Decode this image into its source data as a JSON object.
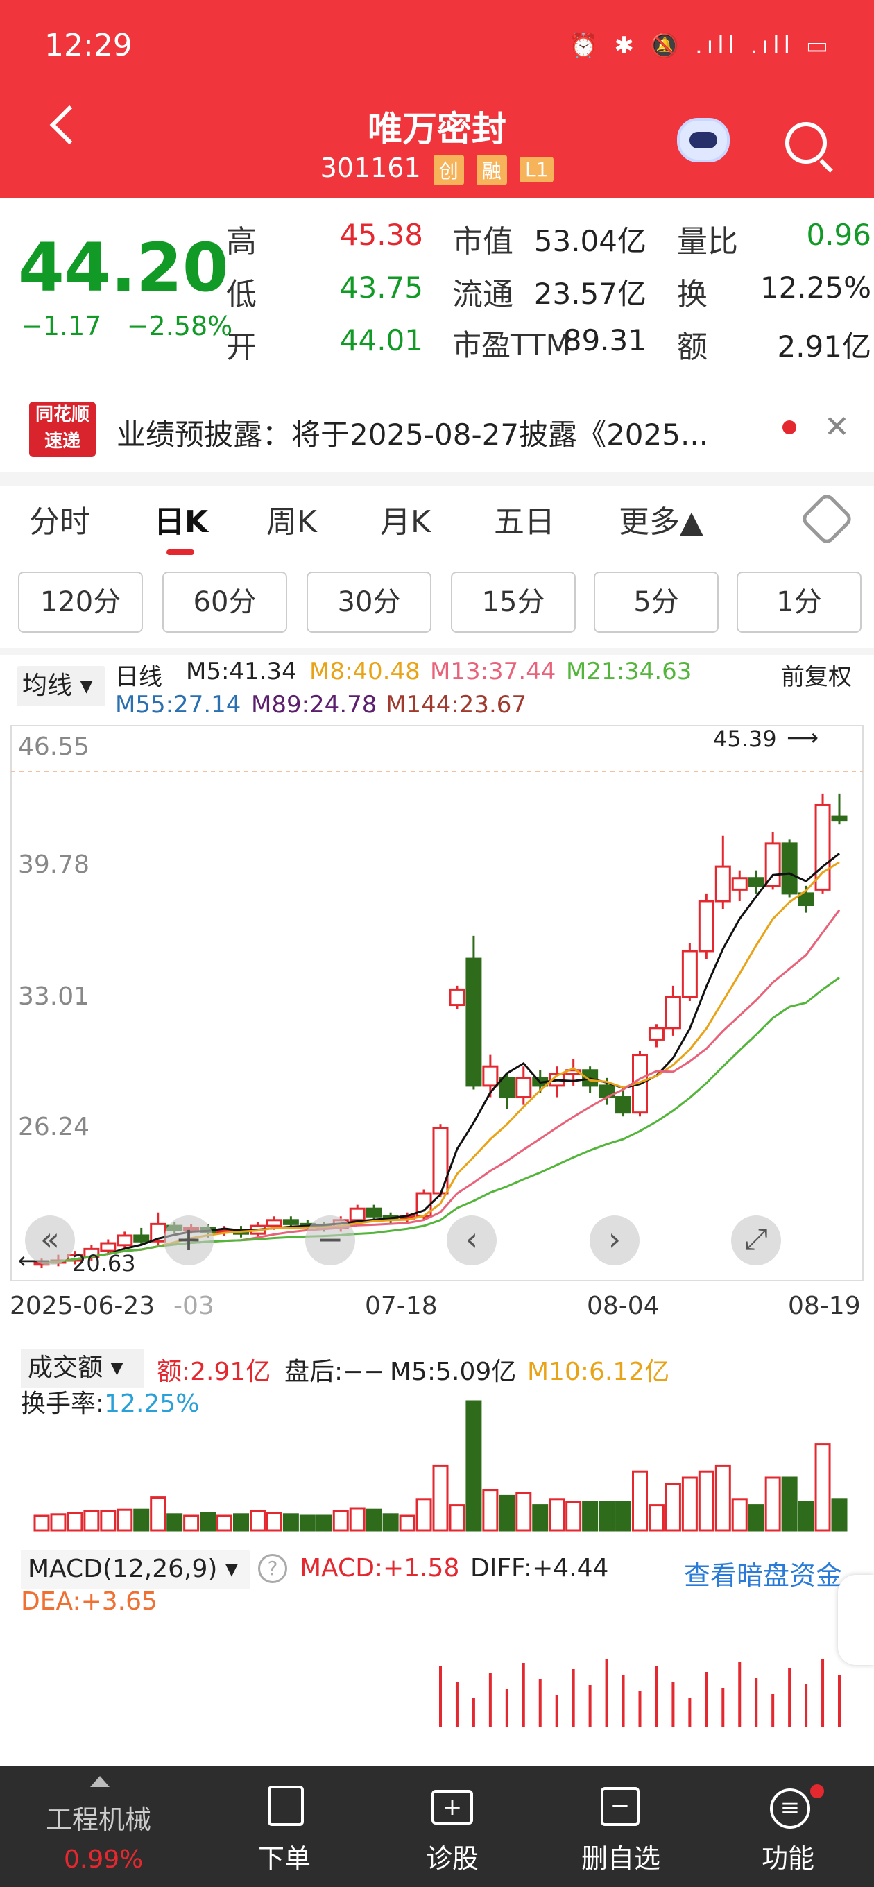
{
  "status": {
    "time": "12:29",
    "icons": "⏰ ✱ 🔕 .ıll .ıll ▭"
  },
  "header": {
    "title": "唯万密封",
    "code": "301161",
    "tags": [
      "创",
      "融",
      "L1"
    ]
  },
  "quote": {
    "price": "44.20",
    "change": "−1.17",
    "change_pct": "−2.58%",
    "cells": [
      {
        "label": "高",
        "value": "45.38"
      },
      {
        "label": "低",
        "value": "43.75"
      },
      {
        "label": "开",
        "value": "44.01"
      },
      {
        "label": "市值",
        "value": "53.04亿"
      },
      {
        "label": "流通",
        "value": "23.57亿"
      },
      {
        "label": "市盈TTM",
        "value": "89.31"
      },
      {
        "label": "量比",
        "value": "0.96"
      },
      {
        "label": "换",
        "value": "12.25%"
      },
      {
        "label": "额",
        "value": "2.91亿"
      }
    ]
  },
  "notice": {
    "logo_top": "同花顺",
    "logo_bottom": "速递",
    "text": "业绩预披露：将于2025-08-27披露《2025...",
    "close": "✕"
  },
  "tabs": [
    "分时",
    "日K",
    "周K",
    "月K",
    "五日",
    "更多▲"
  ],
  "subtabs": [
    "120分",
    "60分",
    "30分",
    "15分",
    "5分",
    "1分"
  ],
  "ma": {
    "select": "均线 ▾",
    "label": "日线",
    "adjust": "前复权",
    "row1": [
      {
        "t": "M5:41.34",
        "c": "#111111"
      },
      {
        "t": "M8:40.48",
        "c": "#e8a317"
      },
      {
        "t": "M13:37.44",
        "c": "#e8637a"
      },
      {
        "t": "M21:34.63",
        "c": "#53b53a"
      }
    ],
    "row2": [
      {
        "t": "M55:27.14",
        "c": "#2a6fb0"
      },
      {
        "t": "M89:24.78",
        "c": "#5b1f6e"
      },
      {
        "t": "M144:23.67",
        "c": "#a13a2e"
      }
    ]
  },
  "chart": {
    "y_ticks": [
      "46.55",
      "39.78",
      "33.01",
      "26.24"
    ],
    "high_label": "45.39",
    "low_label": "20.63",
    "dates": [
      "2025-06-23",
      "-03",
      "07-18",
      "08-04",
      "08-19"
    ],
    "controls": [
      "«",
      "+",
      "−",
      "‹",
      "›",
      "⤢"
    ]
  },
  "volume": {
    "select": "成交额 ▾",
    "amount": "额:2.91亿",
    "after": "盘后:−−",
    "m5": "M5:5.09亿",
    "m10": "M10:6.12亿",
    "turnover_label": "换手率:",
    "turnover": "12.25%"
  },
  "macd": {
    "select": "MACD(12,26,9) ▾",
    "help": "?",
    "macd": "MACD:+1.58",
    "diff": "DIFF:+4.44",
    "dea": "DEA:+3.65",
    "link": "查看暗盘资金"
  },
  "bottom": {
    "sector": "工程机械",
    "sector_pct": "0.99%",
    "items": [
      "下单",
      "诊股",
      "删自选",
      "功能"
    ]
  },
  "chart_data": {
    "type": "candlestick",
    "ylim": [
      20.63,
      46.55
    ],
    "candles": [
      [
        20.9,
        21.0,
        20.7,
        21.2
      ],
      [
        21.0,
        21.1,
        20.8,
        21.4
      ],
      [
        21.1,
        21.4,
        20.9,
        21.6
      ],
      [
        21.3,
        21.7,
        21.1,
        21.9
      ],
      [
        21.6,
        22.0,
        21.4,
        22.2
      ],
      [
        21.9,
        22.4,
        21.7,
        22.6
      ],
      [
        22.4,
        22.1,
        21.9,
        22.8
      ],
      [
        22.1,
        23.0,
        21.9,
        23.6
      ],
      [
        22.9,
        22.7,
        22.5,
        23.1
      ],
      [
        22.7,
        22.8,
        22.5,
        23.0
      ],
      [
        22.8,
        22.6,
        22.3,
        23.0
      ],
      [
        22.6,
        22.7,
        22.4,
        22.9
      ],
      [
        22.7,
        22.5,
        22.3,
        22.9
      ],
      [
        22.5,
        22.9,
        22.3,
        23.1
      ],
      [
        22.9,
        23.2,
        22.7,
        23.4
      ],
      [
        23.2,
        23.0,
        22.8,
        23.4
      ],
      [
        23.0,
        22.9,
        22.7,
        23.2
      ],
      [
        22.9,
        22.8,
        22.6,
        23.1
      ],
      [
        22.8,
        23.2,
        22.6,
        23.4
      ],
      [
        23.2,
        23.8,
        23.0,
        24.0
      ],
      [
        23.8,
        23.4,
        23.1,
        24.0
      ],
      [
        23.4,
        23.3,
        23.0,
        23.6
      ],
      [
        23.3,
        23.4,
        23.1,
        23.6
      ],
      [
        23.4,
        24.6,
        23.2,
        24.8
      ],
      [
        24.6,
        28.0,
        24.4,
        28.2
      ],
      [
        34.4,
        35.2,
        34.2,
        35.4
      ],
      [
        36.8,
        30.2,
        30.0,
        38.0
      ],
      [
        30.2,
        31.2,
        29.6,
        31.8
      ],
      [
        30.6,
        29.6,
        29.0,
        30.8
      ],
      [
        29.6,
        30.6,
        29.2,
        31.2
      ],
      [
        30.6,
        30.2,
        29.8,
        31.0
      ],
      [
        30.2,
        30.8,
        29.6,
        31.2
      ],
      [
        30.8,
        31.0,
        30.2,
        31.6
      ],
      [
        31.0,
        30.2,
        29.8,
        31.2
      ],
      [
        30.2,
        29.6,
        29.2,
        30.6
      ],
      [
        29.6,
        28.8,
        28.6,
        30.0
      ],
      [
        28.8,
        31.8,
        28.6,
        32.0
      ],
      [
        32.6,
        33.2,
        32.2,
        33.4
      ],
      [
        33.2,
        34.8,
        32.8,
        35.4
      ],
      [
        34.8,
        37.2,
        34.6,
        37.6
      ],
      [
        37.2,
        39.8,
        36.8,
        40.2
      ],
      [
        39.8,
        41.6,
        39.4,
        43.2
      ],
      [
        40.4,
        41.0,
        39.8,
        41.4
      ],
      [
        41.0,
        40.6,
        40.2,
        41.4
      ],
      [
        40.6,
        42.8,
        40.4,
        43.4
      ],
      [
        42.8,
        40.2,
        40.0,
        43.0
      ],
      [
        40.2,
        39.6,
        39.2,
        40.6
      ],
      [
        40.4,
        44.8,
        40.2,
        45.4
      ],
      [
        44.2,
        44.0,
        43.8,
        45.4
      ]
    ]
  }
}
